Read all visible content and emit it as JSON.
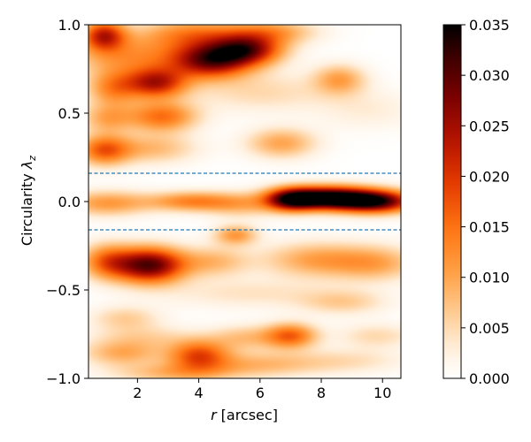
{
  "chart_data": {
    "type": "heatmap",
    "title": "",
    "xlabel": "r [arcsec]",
    "xlabel_var": "r",
    "xlabel_unit": "[arcsec]",
    "ylabel": "Circularity λz",
    "ylabel_prefix": "Circularity ",
    "ylabel_symbol": "λ",
    "ylabel_sub": "z",
    "xlim": [
      0.4,
      10.6
    ],
    "ylim": [
      -1.0,
      1.0
    ],
    "x_ticks": [
      2,
      4,
      6,
      8,
      10
    ],
    "x_tick_labels": [
      "2",
      "4",
      "6",
      "8",
      "10"
    ],
    "y_ticks": [
      -1.0,
      -0.5,
      0.0,
      0.5,
      1.0
    ],
    "y_tick_labels": [
      "−1.0",
      "−0.5",
      "0.0",
      "0.5",
      "1.0"
    ],
    "colormap": "gist_heat_r",
    "grid": false,
    "colorbar": {
      "range": [
        0.0,
        0.035
      ],
      "ticks": [
        0.0,
        0.005,
        0.01,
        0.015,
        0.02,
        0.025,
        0.03,
        0.035
      ],
      "tick_labels": [
        "0.000",
        "0.005",
        "0.010",
        "0.015",
        "0.020",
        "0.025",
        "0.030",
        "0.035"
      ]
    },
    "reference_lines": [
      {
        "orientation": "horizontal",
        "y": 0.16,
        "style": "dashed",
        "color": "#1f77b4"
      },
      {
        "orientation": "horizontal",
        "y": -0.16,
        "style": "dashed",
        "color": "#1f77b4"
      }
    ],
    "density_blobs": [
      {
        "x": 0.9,
        "y": 0.94,
        "sx": 0.5,
        "sy": 0.06,
        "v": 0.021
      },
      {
        "x": 1.8,
        "y": 0.82,
        "sx": 1.4,
        "sy": 0.08,
        "v": 0.011
      },
      {
        "x": 4.4,
        "y": 0.8,
        "sx": 0.9,
        "sy": 0.07,
        "v": 0.027
      },
      {
        "x": 5.6,
        "y": 0.86,
        "sx": 0.8,
        "sy": 0.06,
        "v": 0.024
      },
      {
        "x": 3.8,
        "y": 0.95,
        "sx": 1.2,
        "sy": 0.06,
        "v": 0.012
      },
      {
        "x": 6.4,
        "y": 0.96,
        "sx": 1.0,
        "sy": 0.05,
        "v": 0.01
      },
      {
        "x": 2.6,
        "y": 0.67,
        "sx": 0.7,
        "sy": 0.06,
        "v": 0.022
      },
      {
        "x": 1.2,
        "y": 0.64,
        "sx": 0.6,
        "sy": 0.07,
        "v": 0.012
      },
      {
        "x": 8.6,
        "y": 0.69,
        "sx": 0.6,
        "sy": 0.06,
        "v": 0.01
      },
      {
        "x": 6.0,
        "y": 0.62,
        "sx": 1.6,
        "sy": 0.08,
        "v": 0.005
      },
      {
        "x": 2.8,
        "y": 0.48,
        "sx": 0.8,
        "sy": 0.06,
        "v": 0.015
      },
      {
        "x": 1.0,
        "y": 0.47,
        "sx": 0.6,
        "sy": 0.06,
        "v": 0.009
      },
      {
        "x": 0.9,
        "y": 0.29,
        "sx": 0.6,
        "sy": 0.06,
        "v": 0.016
      },
      {
        "x": 2.5,
        "y": 0.3,
        "sx": 1.0,
        "sy": 0.06,
        "v": 0.008
      },
      {
        "x": 6.7,
        "y": 0.33,
        "sx": 0.8,
        "sy": 0.06,
        "v": 0.01
      },
      {
        "x": 9.5,
        "y": 0.52,
        "sx": 1.2,
        "sy": 0.08,
        "v": 0.003
      },
      {
        "x": 8.2,
        "y": 0.02,
        "sx": 1.0,
        "sy": 0.045,
        "v": 0.036
      },
      {
        "x": 9.8,
        "y": 0.0,
        "sx": 0.9,
        "sy": 0.045,
        "v": 0.03
      },
      {
        "x": 7.0,
        "y": 0.01,
        "sx": 0.6,
        "sy": 0.045,
        "v": 0.024
      },
      {
        "x": 1.0,
        "y": -0.01,
        "sx": 1.0,
        "sy": 0.05,
        "v": 0.011
      },
      {
        "x": 3.8,
        "y": 0.0,
        "sx": 1.0,
        "sy": 0.04,
        "v": 0.013
      },
      {
        "x": 5.4,
        "y": -0.02,
        "sx": 0.8,
        "sy": 0.05,
        "v": 0.007
      },
      {
        "x": 5.2,
        "y": -0.19,
        "sx": 0.5,
        "sy": 0.04,
        "v": 0.011
      },
      {
        "x": 2.4,
        "y": -0.36,
        "sx": 0.8,
        "sy": 0.07,
        "v": 0.03
      },
      {
        "x": 1.0,
        "y": -0.34,
        "sx": 0.6,
        "sy": 0.07,
        "v": 0.014
      },
      {
        "x": 4.5,
        "y": -0.34,
        "sx": 0.8,
        "sy": 0.06,
        "v": 0.008
      },
      {
        "x": 7.8,
        "y": -0.33,
        "sx": 1.2,
        "sy": 0.07,
        "v": 0.01
      },
      {
        "x": 9.8,
        "y": -0.35,
        "sx": 1.0,
        "sy": 0.07,
        "v": 0.009
      },
      {
        "x": 5.6,
        "y": -0.52,
        "sx": 2.0,
        "sy": 0.06,
        "v": 0.004
      },
      {
        "x": 8.7,
        "y": -0.57,
        "sx": 1.0,
        "sy": 0.05,
        "v": 0.006
      },
      {
        "x": 1.6,
        "y": -0.66,
        "sx": 0.8,
        "sy": 0.05,
        "v": 0.006
      },
      {
        "x": 7.0,
        "y": -0.76,
        "sx": 0.6,
        "sy": 0.05,
        "v": 0.016
      },
      {
        "x": 5.5,
        "y": -0.77,
        "sx": 0.8,
        "sy": 0.05,
        "v": 0.007
      },
      {
        "x": 2.2,
        "y": -0.77,
        "sx": 1.2,
        "sy": 0.05,
        "v": 0.005
      },
      {
        "x": 9.8,
        "y": -0.76,
        "sx": 0.9,
        "sy": 0.05,
        "v": 0.005
      },
      {
        "x": 4.0,
        "y": -0.87,
        "sx": 0.7,
        "sy": 0.06,
        "v": 0.017
      },
      {
        "x": 1.5,
        "y": -0.86,
        "sx": 0.9,
        "sy": 0.05,
        "v": 0.009
      },
      {
        "x": 6.0,
        "y": -0.92,
        "sx": 1.5,
        "sy": 0.05,
        "v": 0.008
      },
      {
        "x": 3.2,
        "y": -0.97,
        "sx": 1.4,
        "sy": 0.04,
        "v": 0.008
      },
      {
        "x": 9.0,
        "y": -0.9,
        "sx": 1.3,
        "sy": 0.05,
        "v": 0.004
      }
    ]
  }
}
